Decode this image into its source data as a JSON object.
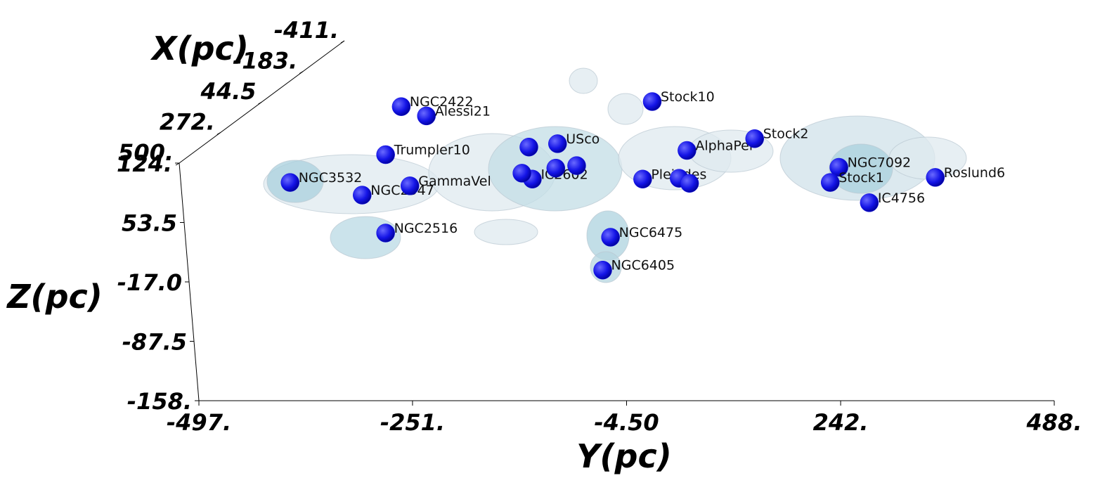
{
  "chart_data": {
    "type": "scatter3d",
    "xlabel": "Y(pc)",
    "ylabel": "Z(pc)",
    "depth_label": "X(pc)",
    "xlim": [
      -497,
      488
    ],
    "ylim": [
      -158,
      124
    ],
    "depthlim": [
      500,
      -411
    ],
    "xticks": [
      {
        "value": -497,
        "label": "-497."
      },
      {
        "value": -251,
        "label": "-251."
      },
      {
        "value": -4.5,
        "label": "-4.50"
      },
      {
        "value": 242,
        "label": "242."
      },
      {
        "value": 488,
        "label": "488."
      }
    ],
    "yticks": [
      {
        "value": 124,
        "label": "124."
      },
      {
        "value": 53.5,
        "label": "53.5"
      },
      {
        "value": -17,
        "label": "-17.0"
      },
      {
        "value": -87.5,
        "label": "-87.5"
      },
      {
        "value": -158,
        "label": "-158."
      }
    ],
    "depthticks": [
      {
        "value": 500,
        "label": "500."
      },
      {
        "value": 272,
        "label": "272."
      },
      44.5,
      {
        "value": -183,
        "label": "-183."
      },
      {
        "value": -411,
        "label": "-411."
      }
    ],
    "color": "#1010e0",
    "labels": [
      "NGC2422",
      "Alessi21",
      "Trumpler10",
      "NGC3532",
      "NGC2547",
      "GammaVel",
      "NGC2516",
      "USco",
      "IC2602",
      "NGC6475",
      "NGC6405",
      "Stock10",
      "AlphaPer",
      "Pleiades",
      "Stock2",
      "NGC7092",
      "Stock1",
      "IC4756",
      "Roslund6",
      null,
      null,
      null,
      null,
      null,
      null
    ],
    "x": [
      -264,
      -235,
      -282,
      -392,
      -309,
      -254,
      -282,
      -84,
      -113,
      -23,
      -32,
      25,
      65,
      14,
      143,
      240,
      230,
      275,
      351,
      -117,
      -125,
      -86,
      -62,
      56,
      68
    ],
    "values": [
      191,
      180,
      134,
      101,
      86,
      97,
      41,
      147,
      105,
      36,
      -3,
      197,
      139,
      105,
      153,
      119,
      101,
      77,
      107,
      143,
      112,
      118,
      121,
      106,
      100
    ]
  }
}
